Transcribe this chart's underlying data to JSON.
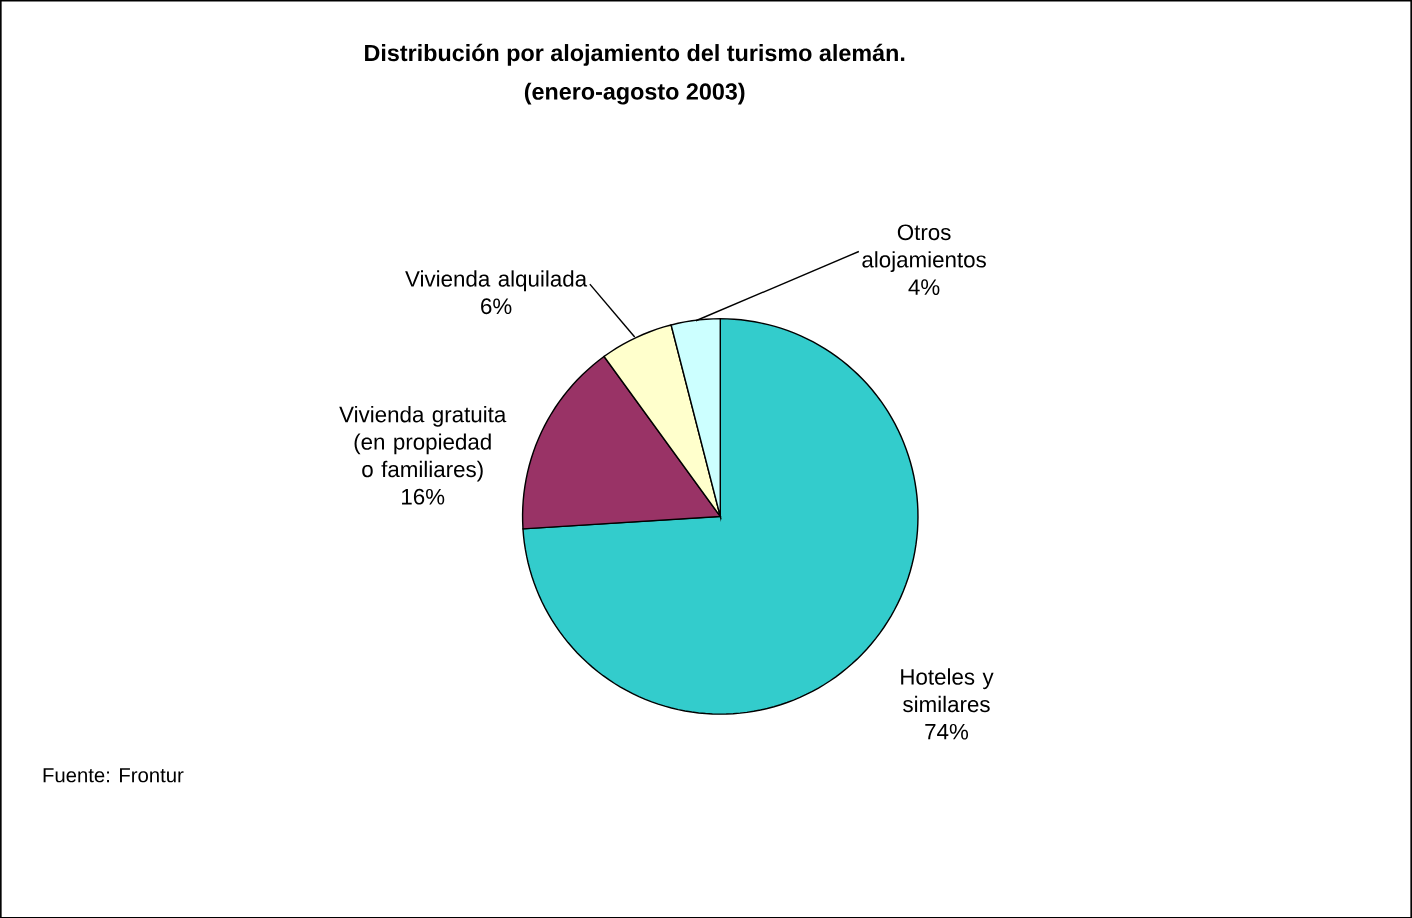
{
  "chart_data": {
    "type": "pie",
    "title": "Distribución por alojamiento del turismo alemán.",
    "subtitle": "(enero-agosto 2003)",
    "categories": [
      "Hoteles y similares",
      "Vivienda gratuita (en propiedad o familiares)",
      "Vivienda alquilada",
      "Otros alojamientos"
    ],
    "values": [
      74,
      16,
      6,
      4
    ],
    "colors": [
      "#33cccc",
      "#993366",
      "#ffffcc",
      "#ccffff"
    ],
    "value_labels": [
      "74%",
      "16%",
      "6%",
      "4%"
    ],
    "annotations": [
      "Fuente: Frontur"
    ]
  }
}
